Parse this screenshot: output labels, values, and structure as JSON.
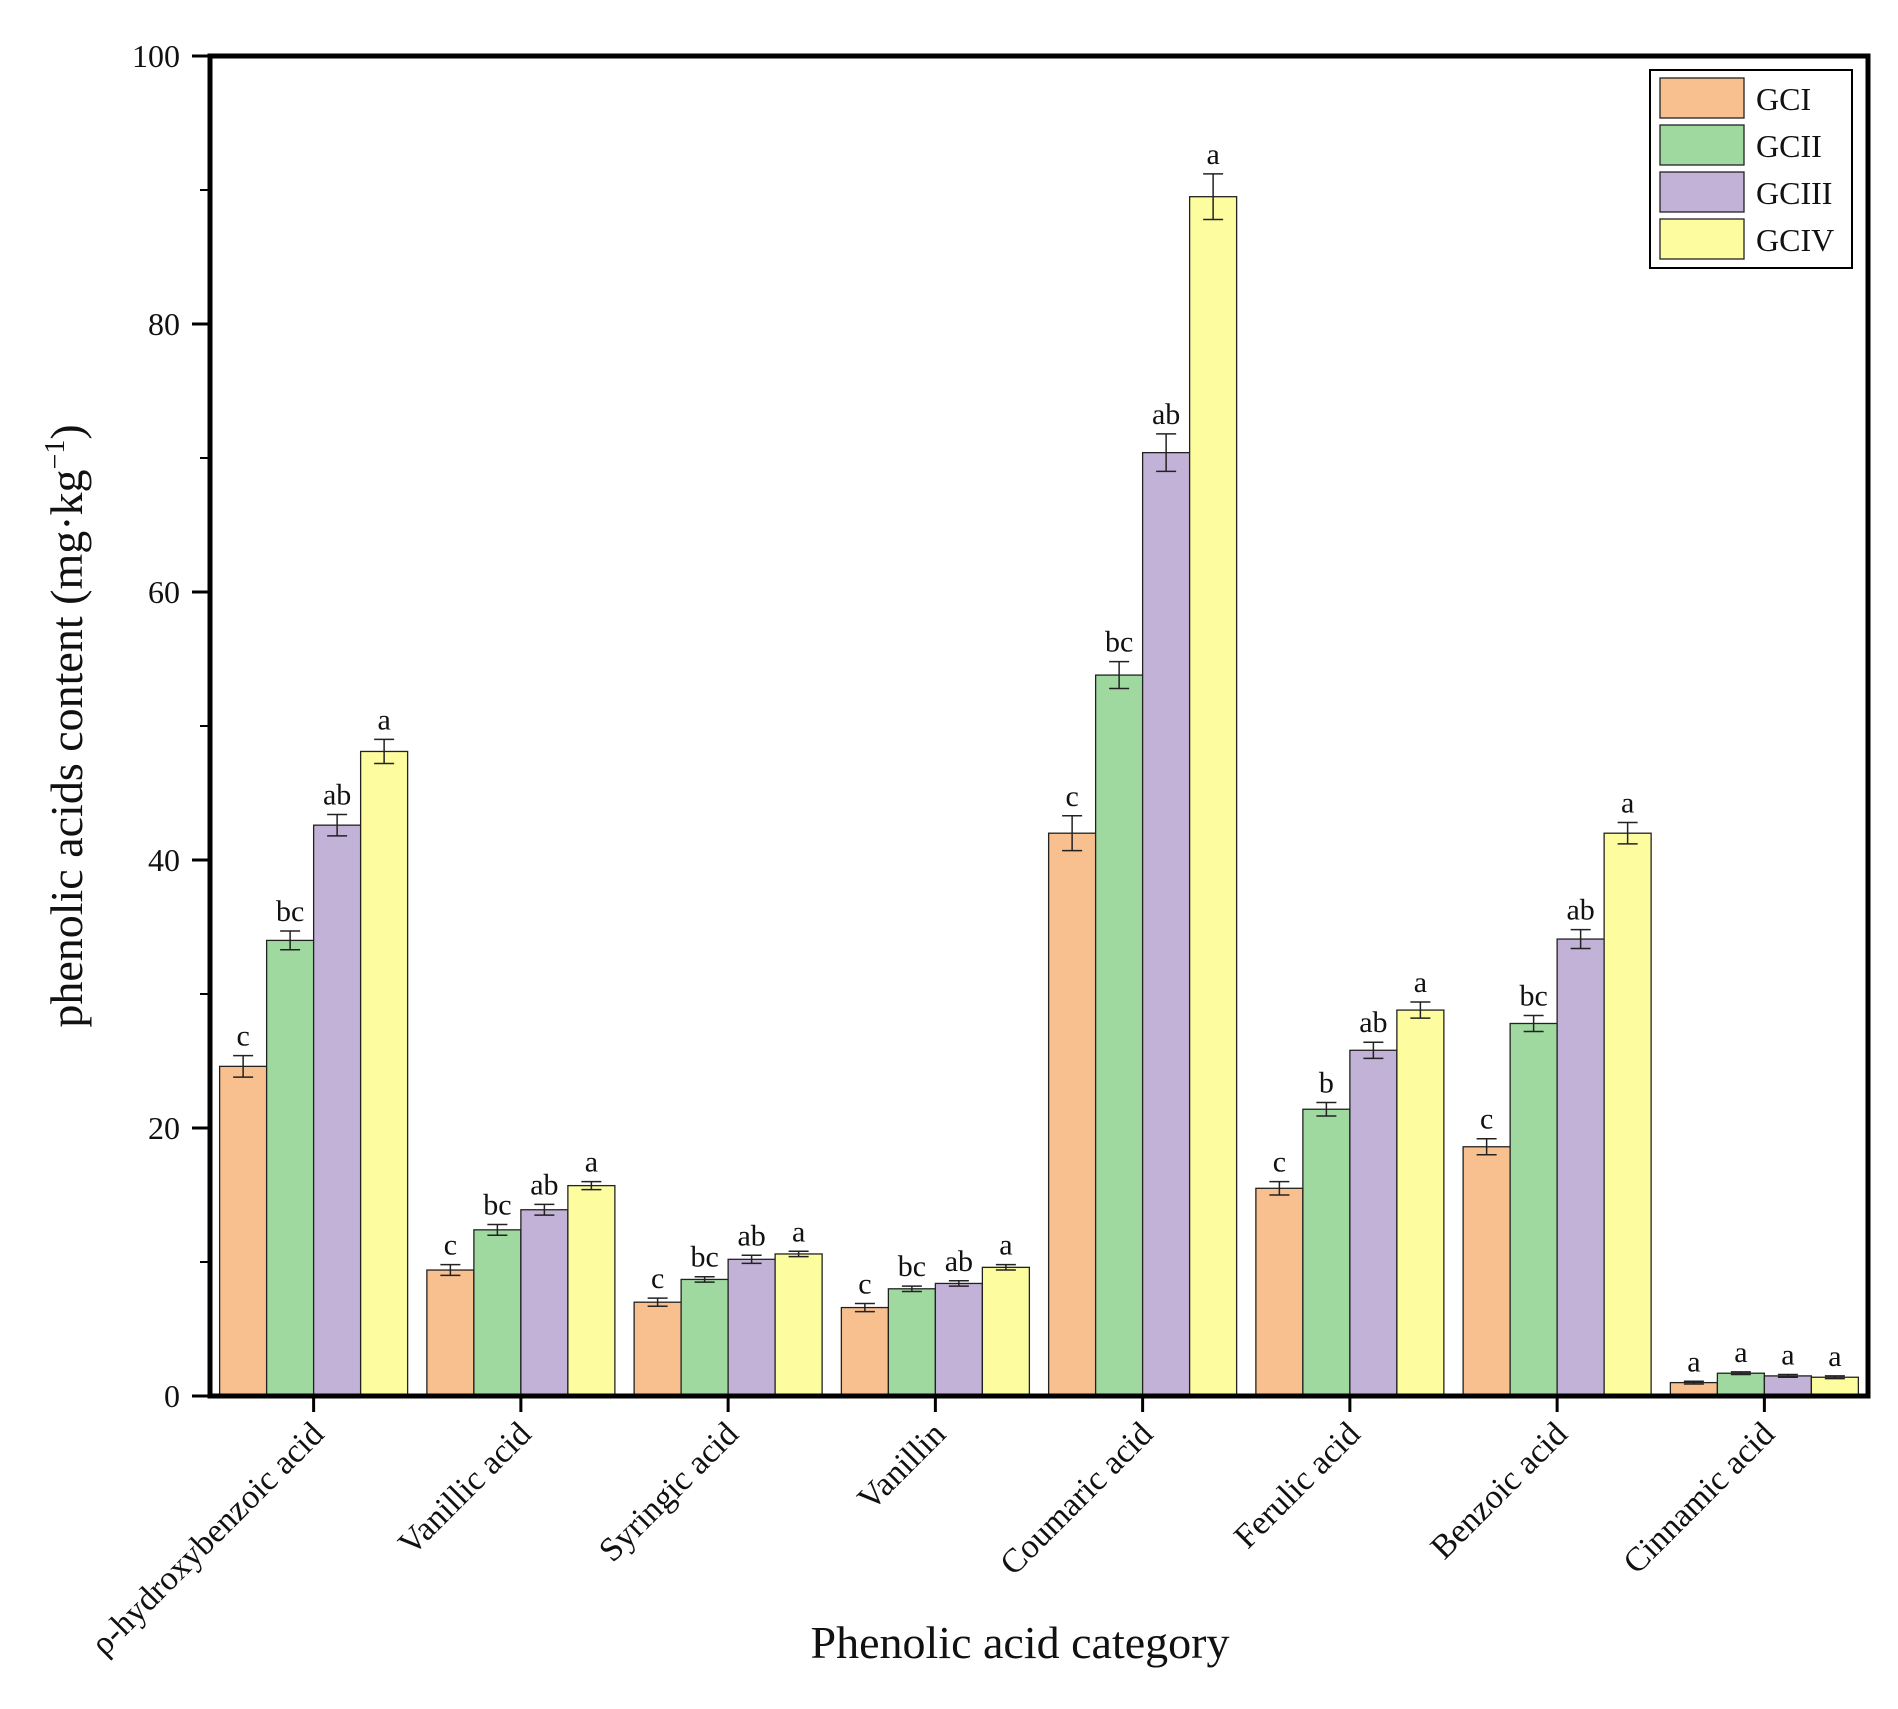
{
  "chart_data": {
    "type": "bar",
    "title": "",
    "xlabel": "Phenolic acid category",
    "ylabel_main": "phenolic acids content (mg·kg",
    "ylabel_sup": "−1",
    "ylabel_close": ")",
    "ylim": [
      0,
      100
    ],
    "yticks": [
      "0",
      "20",
      "40",
      "60",
      "80",
      "100"
    ],
    "categories": [
      "ρ-hydroxybenzoic acid",
      "Vanillic acid",
      "Syringic acid",
      "Vanillin",
      "Coumaric acid",
      "Ferulic acid",
      "Benzoic acid",
      "Cinnamic acid"
    ],
    "series": [
      {
        "name": "GCI",
        "color": "#f8c08e",
        "values": [
          24.6,
          9.4,
          7.0,
          6.6,
          42.0,
          15.5,
          18.6,
          1.0
        ],
        "errors": [
          0.8,
          0.4,
          0.3,
          0.3,
          1.3,
          0.5,
          0.6,
          0.1
        ],
        "sig": [
          "c",
          "c",
          "c",
          "c",
          "c",
          "c",
          "c",
          "a"
        ]
      },
      {
        "name": "GCII",
        "color": "#9fd9a0",
        "values": [
          34.0,
          12.4,
          8.7,
          8.0,
          53.8,
          21.4,
          27.8,
          1.7
        ],
        "errors": [
          0.7,
          0.4,
          0.2,
          0.2,
          1.0,
          0.5,
          0.6,
          0.1
        ],
        "sig": [
          "bc",
          "bc",
          "bc",
          "bc",
          "bc",
          "b",
          "bc",
          "a"
        ]
      },
      {
        "name": "GCIII",
        "color": "#c3b2d8",
        "values": [
          42.6,
          13.9,
          10.2,
          8.4,
          70.4,
          25.8,
          34.1,
          1.5
        ],
        "errors": [
          0.8,
          0.4,
          0.3,
          0.2,
          1.4,
          0.6,
          0.7,
          0.1
        ],
        "sig": [
          "ab",
          "ab",
          "ab",
          "ab",
          "ab",
          "ab",
          "ab",
          "a"
        ]
      },
      {
        "name": "GCIV",
        "color": "#fdfd9f",
        "values": [
          48.1,
          15.7,
          10.6,
          9.6,
          89.5,
          28.8,
          42.0,
          1.4
        ],
        "errors": [
          0.9,
          0.3,
          0.2,
          0.2,
          1.7,
          0.6,
          0.8,
          0.1
        ],
        "sig": [
          "a",
          "a",
          "a",
          "a",
          "a",
          "a",
          "a",
          "a"
        ]
      }
    ],
    "legend": {
      "position": "top-right"
    },
    "grid": false,
    "error_bars": true
  }
}
